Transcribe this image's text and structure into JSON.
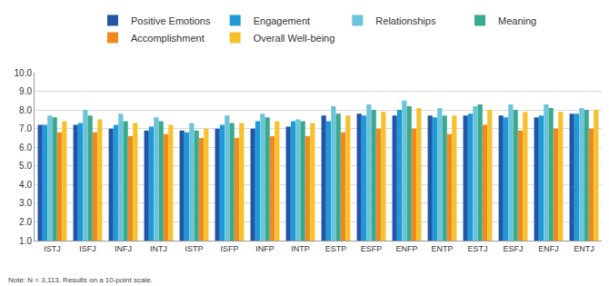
{
  "chart_data": {
    "type": "bar",
    "categories": [
      "ISTJ",
      "ISFJ",
      "INFJ",
      "INTJ",
      "ISTP",
      "ISFP",
      "INFP",
      "INTP",
      "ESTP",
      "ESFP",
      "ENFP",
      "ENTP",
      "ESTJ",
      "ESFJ",
      "ENFJ",
      "ENTJ"
    ],
    "series": [
      {
        "name": "Positive Emotions",
        "color": "#1f56a8",
        "values": [
          7.2,
          7.2,
          7.0,
          6.9,
          6.9,
          7.0,
          7.0,
          7.1,
          7.7,
          7.8,
          7.7,
          7.7,
          7.7,
          7.7,
          7.6,
          7.8
        ]
      },
      {
        "name": "Engagement",
        "color": "#1f9ad8",
        "values": [
          7.2,
          7.3,
          7.2,
          7.1,
          6.8,
          7.2,
          7.4,
          7.4,
          7.4,
          7.7,
          8.0,
          7.6,
          7.8,
          7.6,
          7.7,
          7.8
        ]
      },
      {
        "name": "Relationships",
        "color": "#6cc4dc",
        "values": [
          7.7,
          8.0,
          7.8,
          7.6,
          7.3,
          7.7,
          7.8,
          7.5,
          8.2,
          8.3,
          8.5,
          8.1,
          8.2,
          8.3,
          8.3,
          8.1
        ]
      },
      {
        "name": "Meaning",
        "color": "#3aa98e",
        "values": [
          7.6,
          7.7,
          7.4,
          7.4,
          6.9,
          7.3,
          7.6,
          7.4,
          7.8,
          8.0,
          8.2,
          7.7,
          8.3,
          8.0,
          8.1,
          8.0
        ]
      },
      {
        "name": "Accomplishment",
        "color": "#f08a1e",
        "values": [
          6.8,
          6.8,
          6.6,
          6.7,
          6.5,
          6.5,
          6.6,
          6.6,
          6.8,
          7.0,
          7.0,
          6.7,
          7.2,
          6.9,
          7.0,
          7.0
        ]
      },
      {
        "name": "Overall Well-being",
        "color": "#f6c12c",
        "values": [
          7.4,
          7.5,
          7.3,
          7.2,
          7.0,
          7.3,
          7.4,
          7.3,
          7.7,
          7.9,
          8.1,
          7.7,
          8.0,
          7.9,
          7.9,
          8.0
        ]
      }
    ],
    "ylim": [
      1,
      10
    ],
    "yticks": [
      {
        "value": 1,
        "label": "1.0"
      },
      {
        "value": 2,
        "label": "2.0"
      },
      {
        "value": 3,
        "label": "3.0"
      },
      {
        "value": 4,
        "label": "4.0"
      },
      {
        "value": 5,
        "label": "5.0"
      },
      {
        "value": 6,
        "label": "6.0"
      },
      {
        "value": 7,
        "label": "7.0"
      },
      {
        "value": 8,
        "label": "8.0"
      },
      {
        "value": 9,
        "label": "9.0"
      },
      {
        "value": 10,
        "label": "10.0"
      }
    ],
    "grid": true,
    "legend": "top",
    "annotations": [
      "Note: N = 3,113. Results on a 10-point scale."
    ]
  }
}
